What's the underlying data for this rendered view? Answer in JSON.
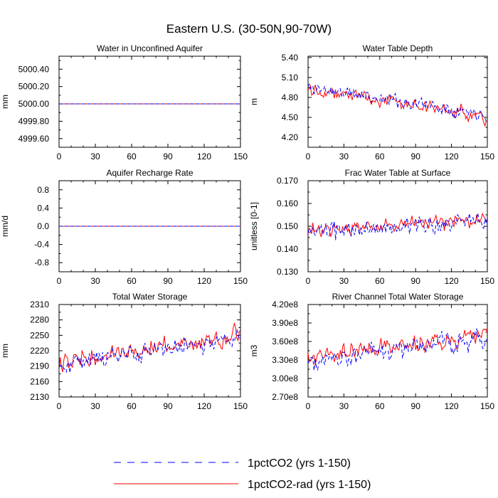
{
  "figure": {
    "title": "Eastern U.S. (30-50N,90-70W)"
  },
  "legend": {
    "entries": [
      {
        "label": "1pctCO2 (yrs 1-150)",
        "color": "#0000ff",
        "dash": "dashed"
      },
      {
        "label": "1pctCO2-rad (yrs 1-150)",
        "color": "#ff0000",
        "dash": "solid"
      }
    ]
  },
  "colors": {
    "series_a": "#0000ff",
    "series_b": "#ff0000",
    "axis": "#000000"
  },
  "chart_data": [
    {
      "type": "line",
      "title": "Water in Unconfined Aquifer",
      "ylabel": "mm",
      "xlim": [
        0,
        150
      ],
      "ylim": [
        4999.5,
        5000.55
      ],
      "xticks": [
        0,
        30,
        60,
        90,
        120,
        150
      ],
      "yticks": [
        4999.6,
        4999.8,
        5000.0,
        5000.2,
        5000.4
      ],
      "ytick_labels": [
        "4999.60",
        "4999.80",
        "5000.00",
        "5000.20",
        "5000.40"
      ],
      "series": [
        {
          "name": "1pctCO2 (yrs 1-150)",
          "constant": 5000.0
        },
        {
          "name": "1pctCO2-rad (yrs 1-150)",
          "constant": 5000.0
        }
      ]
    },
    {
      "type": "line",
      "title": "Water Table Depth",
      "ylabel": "m",
      "xlim": [
        0,
        150
      ],
      "ylim": [
        4.05,
        5.42
      ],
      "xticks": [
        0,
        30,
        60,
        90,
        120,
        150
      ],
      "yticks": [
        4.2,
        4.5,
        4.8,
        5.1,
        5.4
      ],
      "ytick_labels": [
        "4.20",
        "4.50",
        "4.80",
        "5.10",
        "5.40"
      ],
      "series": [
        {
          "name": "1pctCO2 (yrs 1-150)",
          "generate": {
            "seed": 11,
            "start": 4.95,
            "end": 4.55,
            "noise": 0.15,
            "min": 4.12,
            "max": 5.28
          }
        },
        {
          "name": "1pctCO2-rad (yrs 1-150)",
          "generate": {
            "seed": 22,
            "start": 4.95,
            "end": 4.5,
            "noise": 0.14,
            "min": 4.15,
            "max": 5.2
          }
        }
      ]
    },
    {
      "type": "line",
      "title": "Aquifer Recharge Rate",
      "ylabel": "mm/d",
      "xlim": [
        0,
        150
      ],
      "ylim": [
        -1.0,
        1.0
      ],
      "xticks": [
        0,
        30,
        60,
        90,
        120,
        150
      ],
      "yticks": [
        -0.8,
        -0.4,
        0.0,
        0.4,
        0.8
      ],
      "ytick_labels": [
        "-0.8",
        "-0.4",
        "0.0",
        "0.4",
        "0.8"
      ],
      "series": [
        {
          "name": "1pctCO2 (yrs 1-150)",
          "constant": 0.0
        },
        {
          "name": "1pctCO2-rad (yrs 1-150)",
          "constant": 0.0
        }
      ]
    },
    {
      "type": "line",
      "title": "Frac Water Table at Surface",
      "ylabel": "unitless [0-1]",
      "xlim": [
        0,
        150
      ],
      "ylim": [
        0.13,
        0.17
      ],
      "xticks": [
        0,
        30,
        60,
        90,
        120,
        150
      ],
      "yticks": [
        0.13,
        0.14,
        0.15,
        0.16,
        0.17
      ],
      "ytick_labels": [
        "0.130",
        "0.140",
        "0.150",
        "0.160",
        "0.170"
      ],
      "series": [
        {
          "name": "1pctCO2 (yrs 1-150)",
          "generate": {
            "seed": 33,
            "start": 0.147,
            "end": 0.152,
            "noise": 0.0055,
            "min": 0.1345,
            "max": 0.1662
          }
        },
        {
          "name": "1pctCO2-rad (yrs 1-150)",
          "generate": {
            "seed": 44,
            "start": 0.148,
            "end": 0.153,
            "noise": 0.005,
            "min": 0.1355,
            "max": 0.1655
          }
        }
      ]
    },
    {
      "type": "line",
      "title": "Total Water Storage",
      "ylabel": "mm",
      "xlim": [
        0,
        150
      ],
      "ylim": [
        2130,
        2310
      ],
      "xticks": [
        0,
        30,
        60,
        90,
        120,
        150
      ],
      "yticks": [
        2130,
        2160,
        2190,
        2220,
        2250,
        2280,
        2310
      ],
      "ytick_labels": [
        "2130",
        "2160",
        "2190",
        "2220",
        "2250",
        "2280",
        "2310"
      ],
      "series": [
        {
          "name": "1pctCO2 (yrs 1-150)",
          "generate": {
            "seed": 55,
            "start": 2195,
            "end": 2245,
            "noise": 26,
            "min": 2132,
            "max": 2305
          }
        },
        {
          "name": "1pctCO2-rad (yrs 1-150)",
          "generate": {
            "seed": 66,
            "start": 2200,
            "end": 2250,
            "noise": 24,
            "min": 2140,
            "max": 2302
          }
        }
      ]
    },
    {
      "type": "line",
      "title": "River Channel Total Water Storage",
      "ylabel": "m3",
      "xlim": [
        0,
        150
      ],
      "ylim": [
        270000000,
        420000000
      ],
      "xticks": [
        0,
        30,
        60,
        90,
        120,
        150
      ],
      "yticks": [
        270000000,
        300000000,
        330000000,
        360000000,
        390000000,
        420000000
      ],
      "ytick_labels": [
        "2.70e8",
        "3.00e8",
        "3.30e8",
        "3.60e8",
        "3.90e8",
        "4.20e8"
      ],
      "series": [
        {
          "name": "1pctCO2 (yrs 1-150)",
          "generate": {
            "seed": 77,
            "start": 330000000,
            "end": 365000000,
            "noise": 23000000,
            "min": 290000000,
            "max": 418000000
          }
        },
        {
          "name": "1pctCO2-rad (yrs 1-150)",
          "generate": {
            "seed": 88,
            "start": 335000000,
            "end": 370000000,
            "noise": 21000000,
            "min": 292000000,
            "max": 410000000
          }
        }
      ]
    }
  ]
}
